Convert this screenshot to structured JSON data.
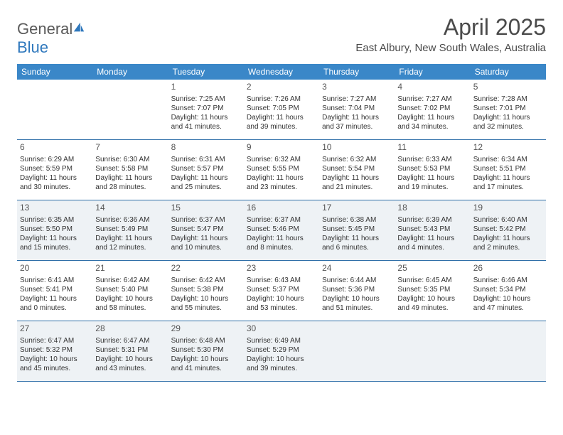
{
  "logo": {
    "text_general": "General",
    "text_blue": "Blue"
  },
  "header": {
    "title": "April 2025",
    "subtitle": "East Albury, New South Wales, Australia"
  },
  "colors": {
    "header_bg": "#3a87c8",
    "header_text": "#ffffff",
    "row_border": "#2f6fa8",
    "shaded_bg": "#eef2f5",
    "body_text": "#333333",
    "title_text": "#4a4a4a",
    "logo_gray": "#5a5a5a",
    "logo_blue": "#2f78bd"
  },
  "calendar": {
    "day_headers": [
      "Sunday",
      "Monday",
      "Tuesday",
      "Wednesday",
      "Thursday",
      "Friday",
      "Saturday"
    ],
    "weeks": [
      {
        "shaded": false,
        "days": [
          {
            "num": "",
            "sunrise": "",
            "sunset": "",
            "daylight": ""
          },
          {
            "num": "",
            "sunrise": "",
            "sunset": "",
            "daylight": ""
          },
          {
            "num": "1",
            "sunrise": "Sunrise: 7:25 AM",
            "sunset": "Sunset: 7:07 PM",
            "daylight": "Daylight: 11 hours and 41 minutes."
          },
          {
            "num": "2",
            "sunrise": "Sunrise: 7:26 AM",
            "sunset": "Sunset: 7:05 PM",
            "daylight": "Daylight: 11 hours and 39 minutes."
          },
          {
            "num": "3",
            "sunrise": "Sunrise: 7:27 AM",
            "sunset": "Sunset: 7:04 PM",
            "daylight": "Daylight: 11 hours and 37 minutes."
          },
          {
            "num": "4",
            "sunrise": "Sunrise: 7:27 AM",
            "sunset": "Sunset: 7:02 PM",
            "daylight": "Daylight: 11 hours and 34 minutes."
          },
          {
            "num": "5",
            "sunrise": "Sunrise: 7:28 AM",
            "sunset": "Sunset: 7:01 PM",
            "daylight": "Daylight: 11 hours and 32 minutes."
          }
        ]
      },
      {
        "shaded": false,
        "days": [
          {
            "num": "6",
            "sunrise": "Sunrise: 6:29 AM",
            "sunset": "Sunset: 5:59 PM",
            "daylight": "Daylight: 11 hours and 30 minutes."
          },
          {
            "num": "7",
            "sunrise": "Sunrise: 6:30 AM",
            "sunset": "Sunset: 5:58 PM",
            "daylight": "Daylight: 11 hours and 28 minutes."
          },
          {
            "num": "8",
            "sunrise": "Sunrise: 6:31 AM",
            "sunset": "Sunset: 5:57 PM",
            "daylight": "Daylight: 11 hours and 25 minutes."
          },
          {
            "num": "9",
            "sunrise": "Sunrise: 6:32 AM",
            "sunset": "Sunset: 5:55 PM",
            "daylight": "Daylight: 11 hours and 23 minutes."
          },
          {
            "num": "10",
            "sunrise": "Sunrise: 6:32 AM",
            "sunset": "Sunset: 5:54 PM",
            "daylight": "Daylight: 11 hours and 21 minutes."
          },
          {
            "num": "11",
            "sunrise": "Sunrise: 6:33 AM",
            "sunset": "Sunset: 5:53 PM",
            "daylight": "Daylight: 11 hours and 19 minutes."
          },
          {
            "num": "12",
            "sunrise": "Sunrise: 6:34 AM",
            "sunset": "Sunset: 5:51 PM",
            "daylight": "Daylight: 11 hours and 17 minutes."
          }
        ]
      },
      {
        "shaded": true,
        "days": [
          {
            "num": "13",
            "sunrise": "Sunrise: 6:35 AM",
            "sunset": "Sunset: 5:50 PM",
            "daylight": "Daylight: 11 hours and 15 minutes."
          },
          {
            "num": "14",
            "sunrise": "Sunrise: 6:36 AM",
            "sunset": "Sunset: 5:49 PM",
            "daylight": "Daylight: 11 hours and 12 minutes."
          },
          {
            "num": "15",
            "sunrise": "Sunrise: 6:37 AM",
            "sunset": "Sunset: 5:47 PM",
            "daylight": "Daylight: 11 hours and 10 minutes."
          },
          {
            "num": "16",
            "sunrise": "Sunrise: 6:37 AM",
            "sunset": "Sunset: 5:46 PM",
            "daylight": "Daylight: 11 hours and 8 minutes."
          },
          {
            "num": "17",
            "sunrise": "Sunrise: 6:38 AM",
            "sunset": "Sunset: 5:45 PM",
            "daylight": "Daylight: 11 hours and 6 minutes."
          },
          {
            "num": "18",
            "sunrise": "Sunrise: 6:39 AM",
            "sunset": "Sunset: 5:43 PM",
            "daylight": "Daylight: 11 hours and 4 minutes."
          },
          {
            "num": "19",
            "sunrise": "Sunrise: 6:40 AM",
            "sunset": "Sunset: 5:42 PM",
            "daylight": "Daylight: 11 hours and 2 minutes."
          }
        ]
      },
      {
        "shaded": false,
        "days": [
          {
            "num": "20",
            "sunrise": "Sunrise: 6:41 AM",
            "sunset": "Sunset: 5:41 PM",
            "daylight": "Daylight: 11 hours and 0 minutes."
          },
          {
            "num": "21",
            "sunrise": "Sunrise: 6:42 AM",
            "sunset": "Sunset: 5:40 PM",
            "daylight": "Daylight: 10 hours and 58 minutes."
          },
          {
            "num": "22",
            "sunrise": "Sunrise: 6:42 AM",
            "sunset": "Sunset: 5:38 PM",
            "daylight": "Daylight: 10 hours and 55 minutes."
          },
          {
            "num": "23",
            "sunrise": "Sunrise: 6:43 AM",
            "sunset": "Sunset: 5:37 PM",
            "daylight": "Daylight: 10 hours and 53 minutes."
          },
          {
            "num": "24",
            "sunrise": "Sunrise: 6:44 AM",
            "sunset": "Sunset: 5:36 PM",
            "daylight": "Daylight: 10 hours and 51 minutes."
          },
          {
            "num": "25",
            "sunrise": "Sunrise: 6:45 AM",
            "sunset": "Sunset: 5:35 PM",
            "daylight": "Daylight: 10 hours and 49 minutes."
          },
          {
            "num": "26",
            "sunrise": "Sunrise: 6:46 AM",
            "sunset": "Sunset: 5:34 PM",
            "daylight": "Daylight: 10 hours and 47 minutes."
          }
        ]
      },
      {
        "shaded": true,
        "days": [
          {
            "num": "27",
            "sunrise": "Sunrise: 6:47 AM",
            "sunset": "Sunset: 5:32 PM",
            "daylight": "Daylight: 10 hours and 45 minutes."
          },
          {
            "num": "28",
            "sunrise": "Sunrise: 6:47 AM",
            "sunset": "Sunset: 5:31 PM",
            "daylight": "Daylight: 10 hours and 43 minutes."
          },
          {
            "num": "29",
            "sunrise": "Sunrise: 6:48 AM",
            "sunset": "Sunset: 5:30 PM",
            "daylight": "Daylight: 10 hours and 41 minutes."
          },
          {
            "num": "30",
            "sunrise": "Sunrise: 6:49 AM",
            "sunset": "Sunset: 5:29 PM",
            "daylight": "Daylight: 10 hours and 39 minutes."
          },
          {
            "num": "",
            "sunrise": "",
            "sunset": "",
            "daylight": ""
          },
          {
            "num": "",
            "sunrise": "",
            "sunset": "",
            "daylight": ""
          },
          {
            "num": "",
            "sunrise": "",
            "sunset": "",
            "daylight": ""
          }
        ]
      }
    ]
  }
}
